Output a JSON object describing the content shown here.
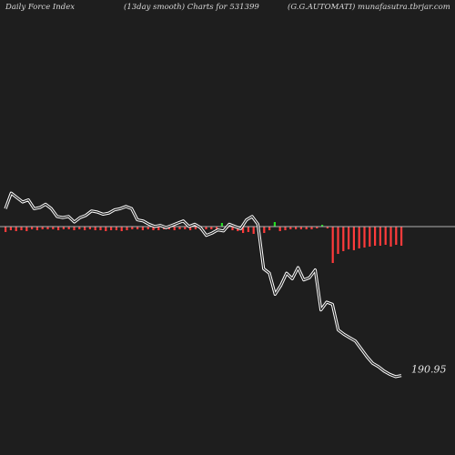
{
  "header": {
    "left": "Daily Force  Index",
    "center": "(13day smooth) Charts for 531399",
    "right": "(G.G.AUTOMATI) munafasutra.tbrjar.com"
  },
  "colors": {
    "background": "#1e1e1e",
    "zero_line": "#b0b0b0",
    "negative_bar": "#ff3b3b",
    "positive_bar": "#22dd22",
    "price_line": "#ffffff"
  },
  "chart_data": {
    "type": "bar",
    "title": "(13day smooth) Charts for 531399",
    "last_price_label": "190.95",
    "bars": [
      -6,
      -4,
      -5,
      -4,
      -5,
      -3,
      -4,
      -3,
      -3,
      -3,
      -4,
      -3,
      -3,
      -4,
      -3,
      -4,
      -3,
      -4,
      -4,
      -5,
      -4,
      -4,
      -5,
      -4,
      -3,
      -3,
      -4,
      -3,
      -4,
      -4,
      -3,
      -3,
      -4,
      -3,
      -3,
      -4,
      -3,
      -4,
      -3,
      -3,
      -3,
      4,
      -2,
      -4,
      -5,
      -7,
      -6,
      -8,
      -9,
      -7,
      -4,
      5,
      -5,
      -4,
      -3,
      -3,
      -3,
      -3,
      -3,
      -2,
      2,
      -2,
      -40,
      -30,
      -27,
      -25,
      -26,
      -24,
      -23,
      -22,
      -21,
      -21,
      -20,
      -22,
      -20,
      -21
    ],
    "bar_range": [
      -45,
      8
    ],
    "price": [
      236,
      250,
      246,
      242,
      244,
      236,
      237,
      240,
      236,
      229,
      228,
      229,
      224,
      228,
      230,
      234,
      233,
      231,
      232,
      235,
      236,
      238,
      236,
      226,
      225,
      222,
      220,
      221,
      219,
      221,
      223,
      225,
      220,
      222,
      219,
      212,
      214,
      217,
      216,
      222,
      220,
      218,
      226,
      229,
      222,
      182,
      178,
      159,
      167,
      178,
      173,
      183,
      172,
      174,
      181,
      145,
      152,
      150,
      127,
      123,
      120,
      117,
      110,
      103,
      97,
      94,
      90,
      87,
      85,
      86
    ],
    "price_range": [
      80,
      260
    ]
  }
}
